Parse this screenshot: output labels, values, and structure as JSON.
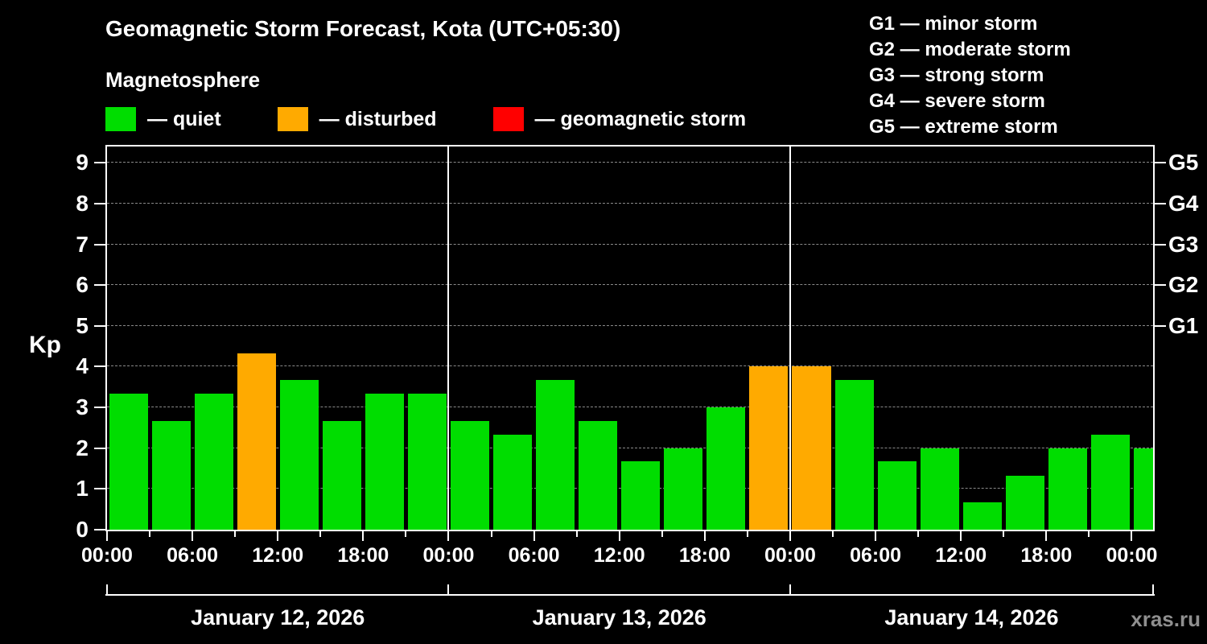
{
  "page": {
    "watermark": "xras.ru"
  },
  "header": {
    "title": "Geomagnetic Storm Forecast, Kota (UTC+05:30)",
    "subtitle": "Magnetosphere"
  },
  "legend": {
    "items": [
      {
        "key": "quiet",
        "label": "— quiet",
        "color": "#00dd00"
      },
      {
        "key": "disturbed",
        "label": "— disturbed",
        "color": "#ffaa00"
      },
      {
        "key": "storm",
        "label": "— geomagnetic storm",
        "color": "#ff0000"
      }
    ]
  },
  "g_legend": [
    {
      "code": "G1",
      "desc": "— minor storm"
    },
    {
      "code": "G2",
      "desc": "— moderate storm"
    },
    {
      "code": "G3",
      "desc": "— strong storm"
    },
    {
      "code": "G4",
      "desc": "— severe storm"
    },
    {
      "code": "G5",
      "desc": "— extreme storm"
    }
  ],
  "chart_data": {
    "type": "bar",
    "title": "Geomagnetic Storm Forecast, Kota (UTC+05:30)",
    "subtitle": "Magnetosphere",
    "ylabel": "Kp",
    "ylim": [
      0,
      9.4
    ],
    "interval_hours": 3,
    "grid": true,
    "y_ticks": [
      0,
      1,
      2,
      3,
      4,
      5,
      6,
      7,
      8,
      9
    ],
    "x_tick_labels": [
      "00:00",
      "06:00",
      "12:00",
      "18:00",
      "00:00",
      "06:00",
      "12:00",
      "18:00",
      "00:00",
      "06:00",
      "12:00",
      "18:00",
      "00:00"
    ],
    "g_scale": [
      {
        "code": "G5",
        "kp": 9
      },
      {
        "code": "G4",
        "kp": 8
      },
      {
        "code": "G3",
        "kp": 7
      },
      {
        "code": "G2",
        "kp": 6
      },
      {
        "code": "G1",
        "kp": 5
      }
    ],
    "thresholds": {
      "disturbed": 4,
      "storm": 5
    },
    "colors": {
      "quiet": "#00dd00",
      "disturbed": "#ffaa00",
      "storm": "#ff0000",
      "grid": "#8a8a8a",
      "axis": "#ffffff",
      "background": "#000000"
    },
    "days": [
      {
        "date": "January 12, 2026",
        "kp": [
          3.33,
          2.67,
          3.33,
          4.33,
          3.67,
          2.67,
          3.33,
          3.33
        ]
      },
      {
        "date": "January 13, 2026",
        "kp": [
          2.67,
          2.33,
          3.67,
          2.67,
          1.67,
          2.0,
          3.0,
          4.0
        ]
      },
      {
        "date": "January 14, 2026",
        "kp": [
          4.0,
          3.67,
          1.67,
          2.0,
          0.67,
          1.33,
          2.0,
          2.33
        ]
      }
    ],
    "next_interval_kp": 2.0
  }
}
